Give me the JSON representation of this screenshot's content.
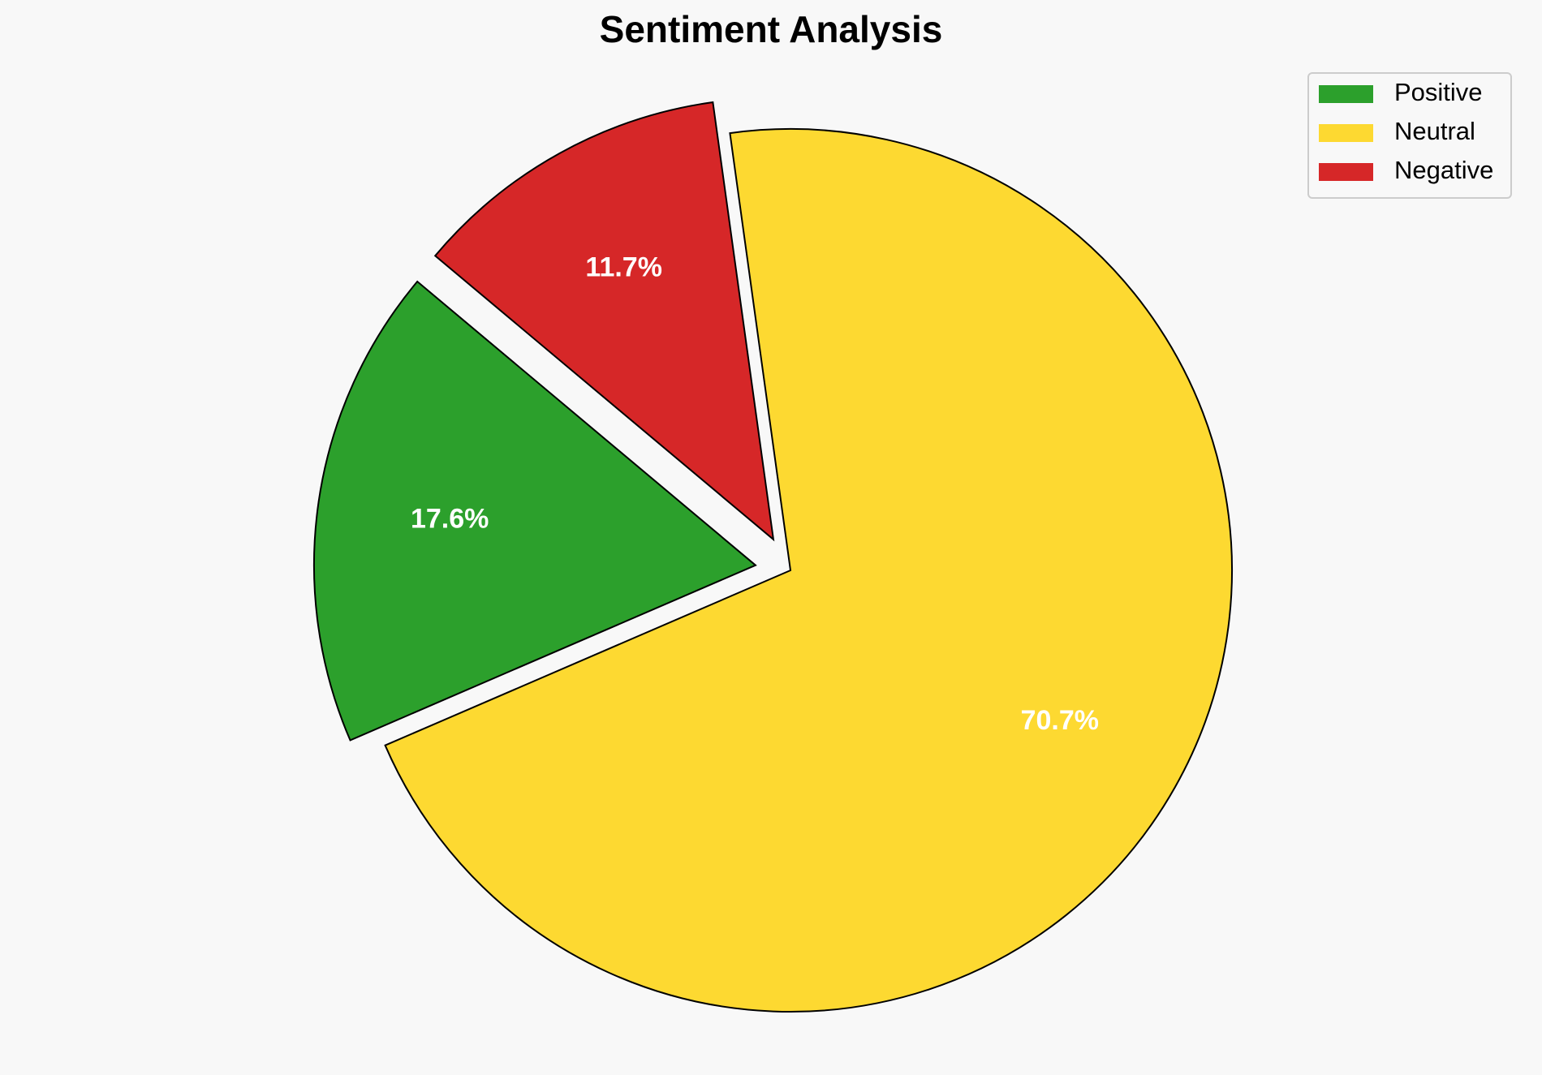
{
  "chart_data": {
    "type": "pie",
    "title": "Sentiment Analysis",
    "categories": [
      "Positive",
      "Neutral",
      "Negative"
    ],
    "values": [
      17.6,
      70.7,
      11.7
    ],
    "value_labels": [
      "17.6%",
      "70.7%",
      "11.7%"
    ],
    "colors": [
      "#2ca02c",
      "#fdd931",
      "#d62728"
    ],
    "start_angle": 140,
    "legend": "upper right"
  }
}
